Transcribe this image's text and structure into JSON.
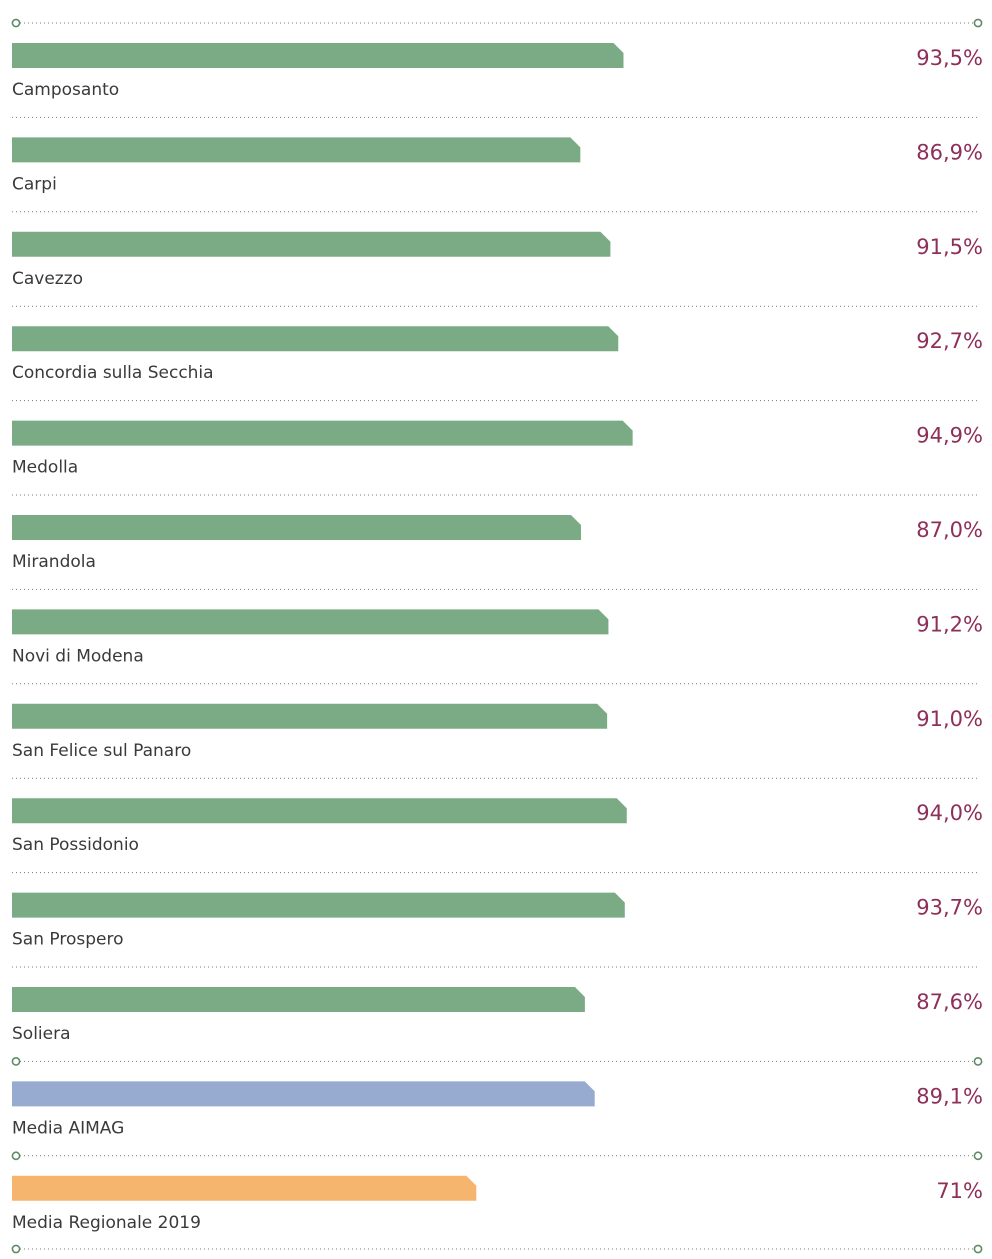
{
  "chart_data": {
    "type": "bar",
    "orientation": "horizontal",
    "title": "",
    "xlabel": "",
    "ylabel": "",
    "xlim": [
      0,
      100
    ],
    "grid": false,
    "legend": "none",
    "value_format": "percent_comma_decimal",
    "categories": [
      "Camposanto",
      "Carpi",
      "Cavezzo",
      "Concordia sulla Secchia",
      "Medolla",
      "Mirandola",
      "Novi di Modena",
      "San Felice sul Panaro",
      "San Possidonio",
      "San Prospero",
      "Soliera",
      "Media AIMAG",
      "Media Regionale 2019"
    ],
    "values": [
      93.5,
      86.9,
      91.5,
      92.7,
      94.9,
      87.0,
      91.2,
      91.0,
      94.0,
      93.7,
      87.6,
      89.1,
      71
    ],
    "value_labels": [
      "93,5%",
      "86,9%",
      "91,5%",
      "92,7%",
      "94,9%",
      "87,0%",
      "91,2%",
      "91,0%",
      "94,0%",
      "93,7%",
      "87,6%",
      "89,1%",
      "71%"
    ],
    "bar_colors": [
      "#7aab84",
      "#7aab84",
      "#7aab84",
      "#7aab84",
      "#7aab84",
      "#7aab84",
      "#7aab84",
      "#7aab84",
      "#7aab84",
      "#7aab84",
      "#7aab84",
      "#97abd1",
      "#f6b56e"
    ],
    "colors": {
      "municipality": "#7aab84",
      "aimag_average": "#97abd1",
      "regional_average": "#f6b56e",
      "value_text": "#8e2f59",
      "label_text": "#3a3a3a",
      "separator": "#7a7a7a",
      "separator_dot": "#5e8a66"
    },
    "separator_dots_after_rows": [
      10,
      11,
      12
    ]
  }
}
